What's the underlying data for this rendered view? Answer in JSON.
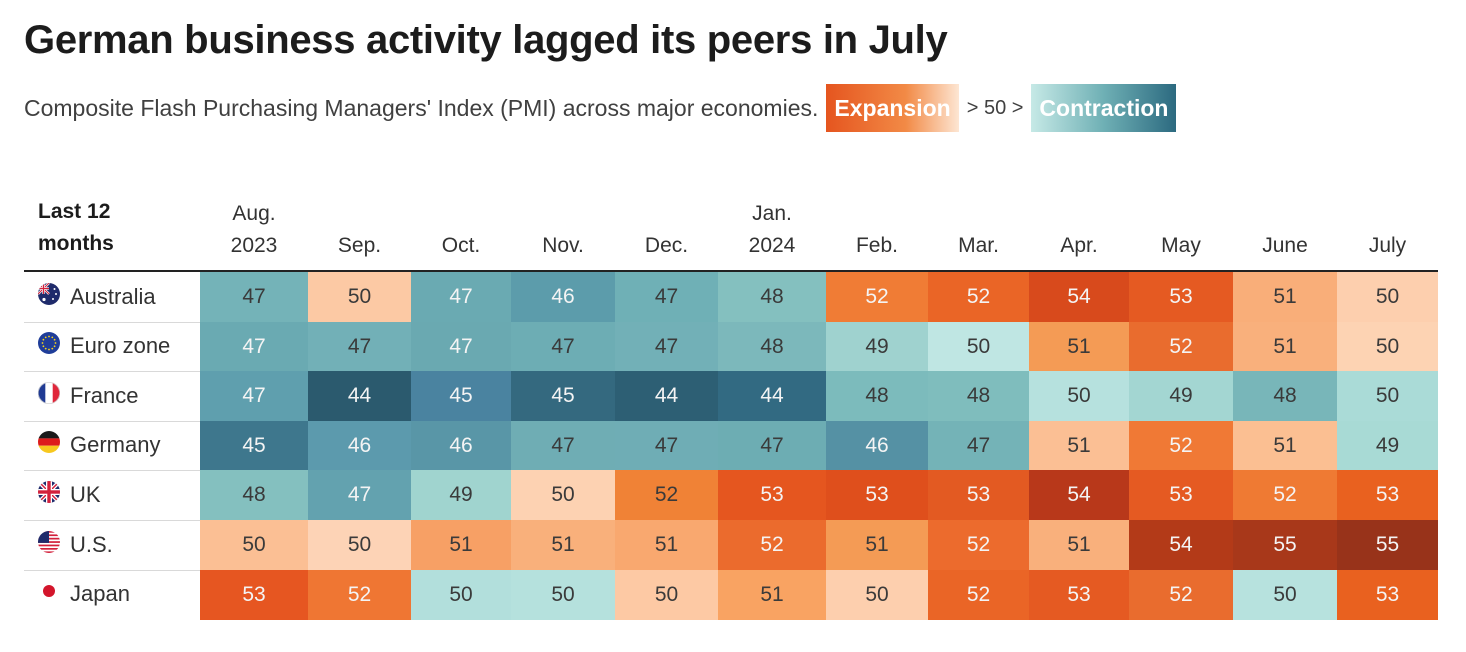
{
  "title": "German business activity lagged its peers in July",
  "subtitle": "Composite Flash Purchasing Managers' Index (PMI) across major economies.",
  "legend": {
    "expansion_label": "Expansion",
    "middle_label": "> 50 >",
    "contraction_label": "Contraction"
  },
  "colors": {
    "expansion": "#e5551f",
    "contraction": "#2c6a80",
    "neutral_high": "#fcd9bb",
    "neutral_low": "#b5e1dd"
  },
  "chart_data": {
    "type": "heatmap",
    "title": "German business activity lagged its peers in July",
    "corner_label": [
      "Last 12",
      "months"
    ],
    "columns": [
      [
        "Aug.",
        "2023"
      ],
      [
        "",
        "Sep."
      ],
      [
        "",
        "Oct."
      ],
      [
        "",
        "Nov."
      ],
      [
        "",
        "Dec."
      ],
      [
        "Jan.",
        "2024"
      ],
      [
        "",
        "Feb."
      ],
      [
        "",
        "Mar."
      ],
      [
        "",
        "Apr."
      ],
      [
        "",
        "May"
      ],
      [
        "",
        "June"
      ],
      [
        "",
        "July"
      ]
    ],
    "rows": [
      {
        "label": "Australia",
        "flag": "australia-flag-icon",
        "values": [
          47,
          50,
          47,
          46,
          47,
          48,
          52,
          52,
          54,
          53,
          51,
          50
        ]
      },
      {
        "label": "Euro zone",
        "flag": "eu-flag-icon",
        "values": [
          47,
          47,
          47,
          47,
          47,
          48,
          49,
          50,
          51,
          52,
          51,
          50
        ]
      },
      {
        "label": "France",
        "flag": "france-flag-icon",
        "values": [
          47,
          44,
          45,
          45,
          44,
          44,
          48,
          48,
          50,
          49,
          48,
          50
        ]
      },
      {
        "label": "Germany",
        "flag": "germany-flag-icon",
        "values": [
          45,
          46,
          46,
          47,
          47,
          47,
          46,
          47,
          51,
          52,
          51,
          49
        ]
      },
      {
        "label": "UK",
        "flag": "uk-flag-icon",
        "values": [
          48,
          47,
          49,
          50,
          52,
          53,
          53,
          53,
          54,
          53,
          52,
          53
        ]
      },
      {
        "label": "U.S.",
        "flag": "us-flag-icon",
        "values": [
          50,
          50,
          51,
          51,
          51,
          52,
          51,
          52,
          51,
          54,
          55,
          55
        ]
      },
      {
        "label": "Japan",
        "flag": "japan-flag-icon",
        "values": [
          53,
          52,
          50,
          50,
          50,
          51,
          50,
          52,
          53,
          52,
          50,
          53
        ]
      }
    ],
    "cell_fills": [
      [
        "#74b3b8",
        "#fcc9a4",
        "#6aaab2",
        "#5c9cab",
        "#6fb0b6",
        "#84c0bf",
        "#f07c35",
        "#ea6526",
        "#d84a1c",
        "#e55a22",
        "#f9ae79",
        "#fdcfae"
      ],
      [
        "#6aaab2",
        "#72b0b7",
        "#6aa9b1",
        "#6dadb4",
        "#72b0b7",
        "#7cb8bb",
        "#9fd2cf",
        "#bfe6e3",
        "#f49b55",
        "#e96c2e",
        "#f9b07c",
        "#fdd3b3"
      ],
      [
        "#5f9fae",
        "#2b5a6e",
        "#4a83a0",
        "#34697f",
        "#2d5f74",
        "#326a82",
        "#7cbbbc",
        "#7fbdbd",
        "#b6e1de",
        "#a3d6d2",
        "#78b6b9",
        "#aadbd7"
      ],
      [
        "#3e778d",
        "#5c9aad",
        "#5996a7",
        "#6fadb4",
        "#6fadb5",
        "#6dadb3",
        "#5591a4",
        "#74b3b7",
        "#fbbf94",
        "#f07935",
        "#fbbf92",
        "#a8dad5"
      ],
      [
        "#84c0bf",
        "#63a2af",
        "#a0d4cf",
        "#fdd2b2",
        "#f08236",
        "#e5561f",
        "#df4f1c",
        "#e35a22",
        "#b8381a",
        "#e55a22",
        "#ef7a33",
        "#e9611f"
      ],
      [
        "#fbbf94",
        "#fdd3b6",
        "#f7a065",
        "#f9b07b",
        "#f9a86f",
        "#eb6b2d",
        "#f49b55",
        "#ec6b2d",
        "#f9b07c",
        "#b33a18",
        "#a8381a",
        "#98331a"
      ],
      [
        "#e65621",
        "#ef7633",
        "#b2dfdc",
        "#b5e1dd",
        "#fdc9a4",
        "#f9a362",
        "#fdcfae",
        "#ea6526",
        "#e55a22",
        "#e96c2e",
        "#b7e2de",
        "#e9611f"
      ]
    ],
    "value_range": [
      44,
      55
    ],
    "midpoint": 50
  }
}
